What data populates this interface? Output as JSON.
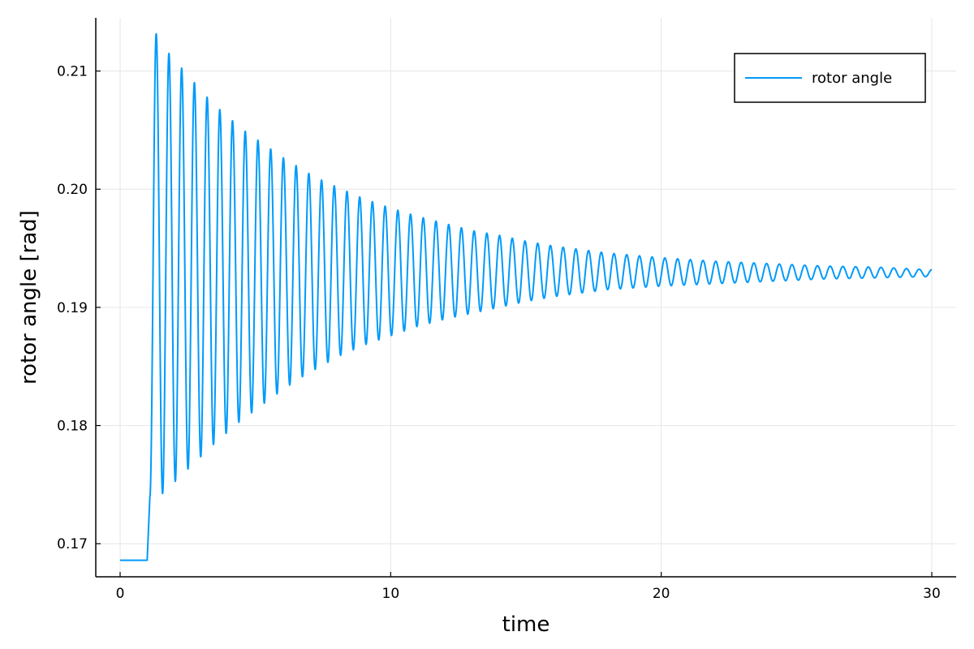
{
  "chart_data": {
    "type": "line",
    "xlabel": "time",
    "ylabel": "rotor angle [rad]",
    "xlim": [
      -0.9,
      30.9
    ],
    "ylim": [
      0.1672,
      0.2145
    ],
    "xticks": [
      0,
      10,
      20,
      30
    ],
    "xtick_labels": [
      "0",
      "10",
      "20",
      "30"
    ],
    "yticks": [
      0.17,
      0.18,
      0.19,
      0.2,
      0.21
    ],
    "ytick_labels": [
      "0.17",
      "0.18",
      "0.19",
      "0.20",
      "0.21"
    ],
    "grid": true,
    "legend": {
      "placement": "top-right",
      "entries": [
        "rotor angle"
      ]
    },
    "series": [
      {
        "name": "rotor angle",
        "color": "#009AFA",
        "initial_value": 0.1686,
        "step_time": 1.0,
        "settle_value": 0.1929,
        "oscillation_period": 0.47,
        "x": [
          1.1,
          1.3,
          1.55,
          1.8,
          2.0,
          2.25,
          2.5,
          2.75,
          3.0,
          3.25,
          3.5,
          3.75,
          4.0,
          4.25,
          4.5,
          4.75,
          5.0,
          5.5,
          6.0,
          6.5,
          7.0,
          7.5,
          8.0,
          9.0,
          10.0,
          11.0,
          12.0,
          13.0,
          14.0,
          15.0,
          16.0,
          18.0,
          20.0,
          22.0,
          24.0,
          26.0,
          28.0,
          29.8
        ],
        "upper_envelope": [
          0.213,
          0.2133,
          0.2122,
          0.2115,
          0.211,
          0.2103,
          0.2097,
          0.209,
          0.2083,
          0.2077,
          0.2071,
          0.2066,
          0.2061,
          0.2056,
          0.2051,
          0.2047,
          0.2043,
          0.2035,
          0.2027,
          0.202,
          0.2013,
          0.2007,
          0.2002,
          0.1992,
          0.1984,
          0.1977,
          0.1971,
          0.1965,
          0.1961,
          0.1956,
          0.1952,
          0.1946,
          0.1942,
          0.1939,
          0.1937,
          0.1935,
          0.1934,
          0.1932
        ],
        "lower_envelope": [
          0.174,
          0.1735,
          0.1742,
          0.1748,
          0.1752,
          0.1757,
          0.1763,
          0.1769,
          0.1774,
          0.178,
          0.1785,
          0.179,
          0.1795,
          0.18,
          0.1805,
          0.1809,
          0.1813,
          0.1822,
          0.183,
          0.1838,
          0.1845,
          0.1851,
          0.1858,
          0.1868,
          0.1876,
          0.1884,
          0.189,
          0.1895,
          0.19,
          0.1905,
          0.1909,
          0.1915,
          0.1918,
          0.192,
          0.1922,
          0.1924,
          0.1925,
          0.1926
        ]
      }
    ]
  }
}
